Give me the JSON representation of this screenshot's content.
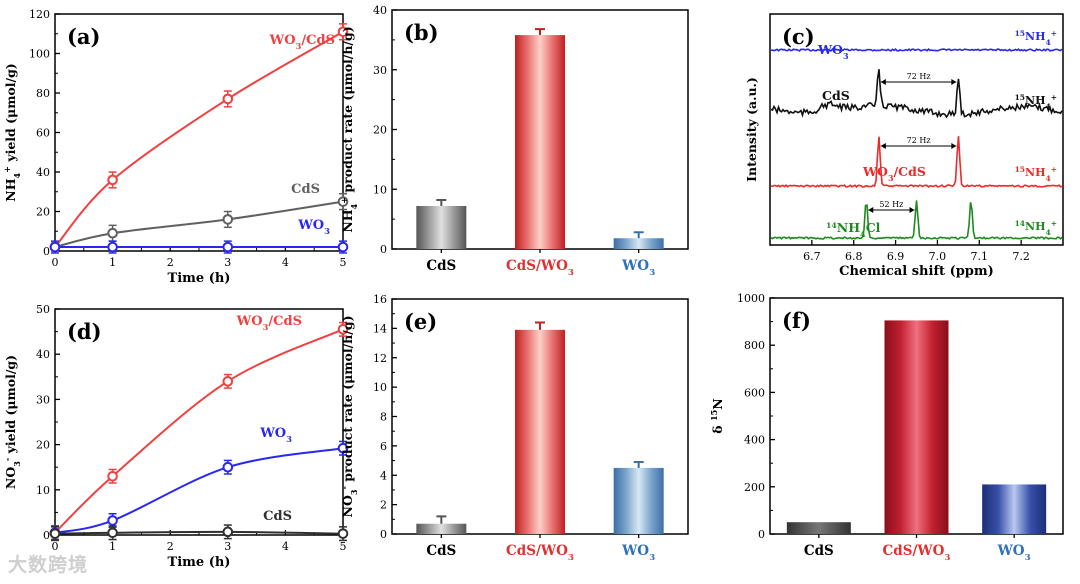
{
  "watermark": "大数跨境",
  "chart_data": [
    {
      "id": "a",
      "type": "line",
      "panel_label": "(a)",
      "xlabel": "Time (h)",
      "ylabel_main": "NH",
      "ylabel_sub": "4",
      "ylabel_sup": "+",
      "ylabel_tail": " yield (μmol/g)",
      "xlim": [
        0,
        5
      ],
      "ylim": [
        0,
        120
      ],
      "xticks": [
        "0",
        "1",
        "2",
        "3",
        "4",
        "5"
      ],
      "yticks": [
        "0",
        "20",
        "40",
        "60",
        "80",
        "100",
        "120"
      ],
      "series": [
        {
          "name": "WO3/CdS",
          "main": "WO",
          "sub": "3",
          "tail": "/CdS",
          "color": "#f04040",
          "x": [
            0,
            1,
            3,
            5
          ],
          "y": [
            2,
            36,
            77,
            111
          ],
          "err": [
            2,
            4,
            4,
            4
          ]
        },
        {
          "name": "CdS",
          "main": "CdS",
          "sub": "",
          "tail": "",
          "color": "#606060",
          "x": [
            0,
            1,
            3,
            5
          ],
          "y": [
            2,
            9,
            16,
            25
          ],
          "err": [
            2,
            4,
            4,
            4
          ]
        },
        {
          "name": "WO3",
          "main": "WO",
          "sub": "3",
          "tail": "",
          "color": "#2828f0",
          "x": [
            0,
            1,
            3,
            5
          ],
          "y": [
            2,
            2,
            2,
            2
          ],
          "err": [
            3,
            3,
            3,
            3
          ]
        }
      ]
    },
    {
      "id": "b",
      "type": "bar",
      "panel_label": "(b)",
      "ylabel_main": "NH",
      "ylabel_sub": "4",
      "ylabel_sup": "+",
      "ylabel_tail": " product rate (μmol/h/g)",
      "ylim": [
        0,
        40
      ],
      "yticks": [
        "0",
        "10",
        "20",
        "30",
        "40"
      ],
      "categories": [
        {
          "main": "CdS",
          "sub": "",
          "color": "#000000"
        },
        {
          "main": "CdS/WO",
          "sub": "3",
          "color": "#e23030"
        },
        {
          "main": "WO",
          "sub": "3",
          "color": "#3070b8"
        }
      ],
      "values": [
        7.2,
        35.8,
        1.8
      ],
      "errors": [
        1.0,
        1.0,
        1.0
      ]
    },
    {
      "id": "c",
      "type": "line",
      "panel_label": "(c)",
      "xlabel": "Chemical shift (ppm)",
      "ylabel": "Intensity (a.u.)",
      "xlim": [
        6.6,
        7.3
      ],
      "xticks": [
        "6.7",
        "6.8",
        "6.9",
        "7.0",
        "7.1",
        "7.2"
      ],
      "traces": [
        {
          "label_main": "WO",
          "label_sub": "3",
          "label_tail": "",
          "color": "#2828f0",
          "right_label": "15NH4+",
          "peaks": [],
          "splitting": ""
        },
        {
          "label_main": "CdS",
          "label_sub": "",
          "label_tail": "",
          "color": "#111111",
          "right_label": "15NH4+",
          "peaks": [
            6.86,
            7.05
          ],
          "splitting": "72 Hz"
        },
        {
          "label_main": "WO",
          "label_sub": "3",
          "label_tail": "/CdS",
          "color": "#f02828",
          "right_label": "15NH4+",
          "peaks": [
            6.86,
            7.05
          ],
          "splitting": "72 Hz"
        },
        {
          "label_main": "NH",
          "label_sub": "4",
          "label_tail": "Cl",
          "label_pre": "14",
          "color": "#1e8a1e",
          "right_label": "14NH4+",
          "peaks": [
            6.83,
            6.95,
            7.08
          ],
          "splitting": "52 Hz"
        }
      ]
    },
    {
      "id": "d",
      "type": "line",
      "panel_label": "(d)",
      "xlabel": "Time (h)",
      "ylabel_main": "NO",
      "ylabel_sub": "3",
      "ylabel_sup": "-",
      "ylabel_tail": " yield (μmol/g)",
      "xlim": [
        0,
        5
      ],
      "ylim": [
        0,
        50
      ],
      "xticks": [
        "0",
        "1",
        "2",
        "3",
        "4",
        "5"
      ],
      "yticks": [
        "0",
        "10",
        "20",
        "30",
        "40",
        "50"
      ],
      "series": [
        {
          "name": "WO3/CdS",
          "main": "WO",
          "sub": "3",
          "tail": "/CdS",
          "color": "#f04040",
          "x": [
            0,
            1,
            3,
            5
          ],
          "y": [
            0.5,
            13,
            34,
            45.5
          ],
          "err": [
            1.5,
            1.5,
            1.5,
            1.5
          ]
        },
        {
          "name": "WO3",
          "main": "WO",
          "sub": "3",
          "tail": "",
          "color": "#2828f0",
          "x": [
            0,
            1,
            3,
            5
          ],
          "y": [
            0.5,
            3.2,
            15,
            19.2
          ],
          "err": [
            1.5,
            1.5,
            1.5,
            1.5
          ]
        },
        {
          "name": "CdS",
          "main": "CdS",
          "sub": "",
          "tail": "",
          "color": "#303030",
          "x": [
            0,
            1,
            3,
            5
          ],
          "y": [
            0.3,
            0.5,
            0.7,
            0.3
          ],
          "err": [
            1.5,
            1.5,
            1.5,
            1.5
          ]
        }
      ]
    },
    {
      "id": "e",
      "type": "bar",
      "panel_label": "(e)",
      "ylabel_main": "NO",
      "ylabel_sub": "3",
      "ylabel_sup": "-",
      "ylabel_tail": " product rate (μmol/h/g)",
      "ylim": [
        0,
        16
      ],
      "yticks": [
        "0",
        "2",
        "4",
        "6",
        "8",
        "10",
        "12",
        "14",
        "16"
      ],
      "categories": [
        {
          "main": "CdS",
          "sub": "",
          "color": "#000000"
        },
        {
          "main": "CdS/WO",
          "sub": "3",
          "color": "#e23030"
        },
        {
          "main": "WO",
          "sub": "3",
          "color": "#3070b8"
        }
      ],
      "values": [
        0.7,
        13.9,
        4.5
      ],
      "errors": [
        0.5,
        0.5,
        0.4
      ]
    },
    {
      "id": "f",
      "type": "bar",
      "panel_label": "(f)",
      "ylabel_main": "δ ",
      "ylabel_sup": "15",
      "ylabel_tail": "N",
      "ylim": [
        0,
        1000
      ],
      "yticks": [
        "0",
        "200",
        "400",
        "600",
        "800",
        "1000"
      ],
      "categories": [
        {
          "main": "CdS",
          "sub": "",
          "color": "#000000"
        },
        {
          "main": "CdS/WO",
          "sub": "3",
          "color": "#e23030"
        },
        {
          "main": "WO",
          "sub": "3",
          "color": "#3070b8"
        }
      ],
      "values": [
        50,
        905,
        210
      ],
      "errors": []
    }
  ]
}
